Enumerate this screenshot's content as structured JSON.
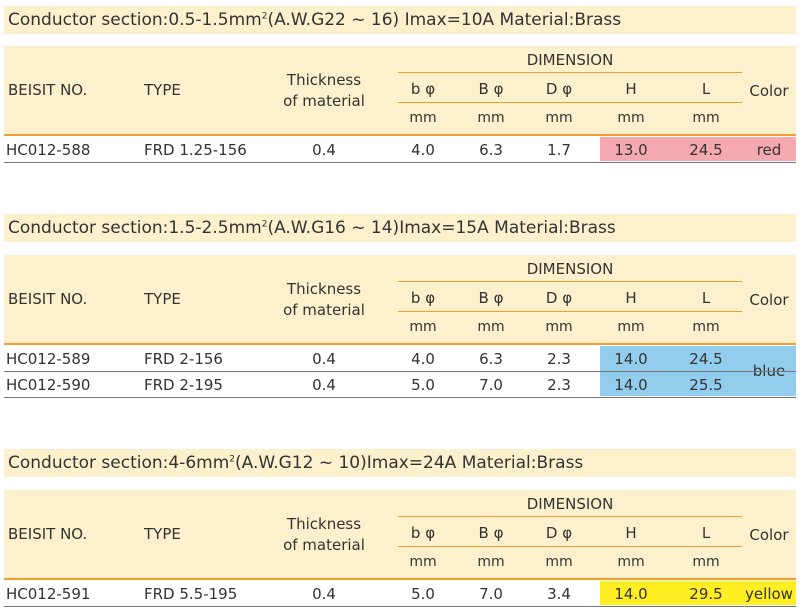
{
  "header_labels": {
    "beisit_no": "BEISIT NO.",
    "type": "TYPE",
    "thickness_line1": "Thickness",
    "thickness_line2": "of material",
    "dimension": "DIMENSION",
    "b_small": "b φ",
    "b_large": "B φ",
    "d": "D φ",
    "h": "H",
    "l": "L",
    "color": "Color",
    "unit": "mm"
  },
  "sections": [
    {
      "title_pre": "Conductor section:0.5-1.5mm",
      "title_sup": "2",
      "title_post": "(A.W.G22 ~ 16) Imax=10A    Material:Brass",
      "highlight_color": "#f4a8b0",
      "rows": [
        {
          "beisit_no": "HC012-588",
          "type": "FRD 1.25-156",
          "thickness": "0.4",
          "b_small": "4.0",
          "b_large": "6.3",
          "d": "1.7",
          "h": "13.0",
          "l": "24.5",
          "color": "red"
        }
      ]
    },
    {
      "title_pre": "Conductor section:1.5-2.5mm",
      "title_sup": "2",
      "title_post": "(A.W.G16 ~ 14)Imax=15A    Material:Brass",
      "highlight_color": "#92cdee",
      "rows": [
        {
          "beisit_no": "HC012-589",
          "type": "FRD 2-156",
          "thickness": "0.4",
          "b_small": "4.0",
          "b_large": "6.3",
          "d": "2.3",
          "h": "14.0",
          "l": "24.5",
          "color": "blue"
        },
        {
          "beisit_no": "HC012-590",
          "type": "FRD 2-195",
          "thickness": "0.4",
          "b_small": "5.0",
          "b_large": "7.0",
          "d": "2.3",
          "h": "14.0",
          "l": "25.5",
          "color": ""
        }
      ]
    },
    {
      "title_pre": "Conductor section:4-6mm",
      "title_sup": "2",
      "title_post": "(A.W.G12 ~ 10)Imax=24A    Material:Brass",
      "highlight_color": "#ffee22",
      "rows": [
        {
          "beisit_no": "HC012-591",
          "type": "FRD 5.5-195",
          "thickness": "0.4",
          "b_small": "5.0",
          "b_large": "7.0",
          "d": "3.4",
          "h": "14.0",
          "l": "29.5",
          "color": "yellow"
        }
      ]
    }
  ]
}
